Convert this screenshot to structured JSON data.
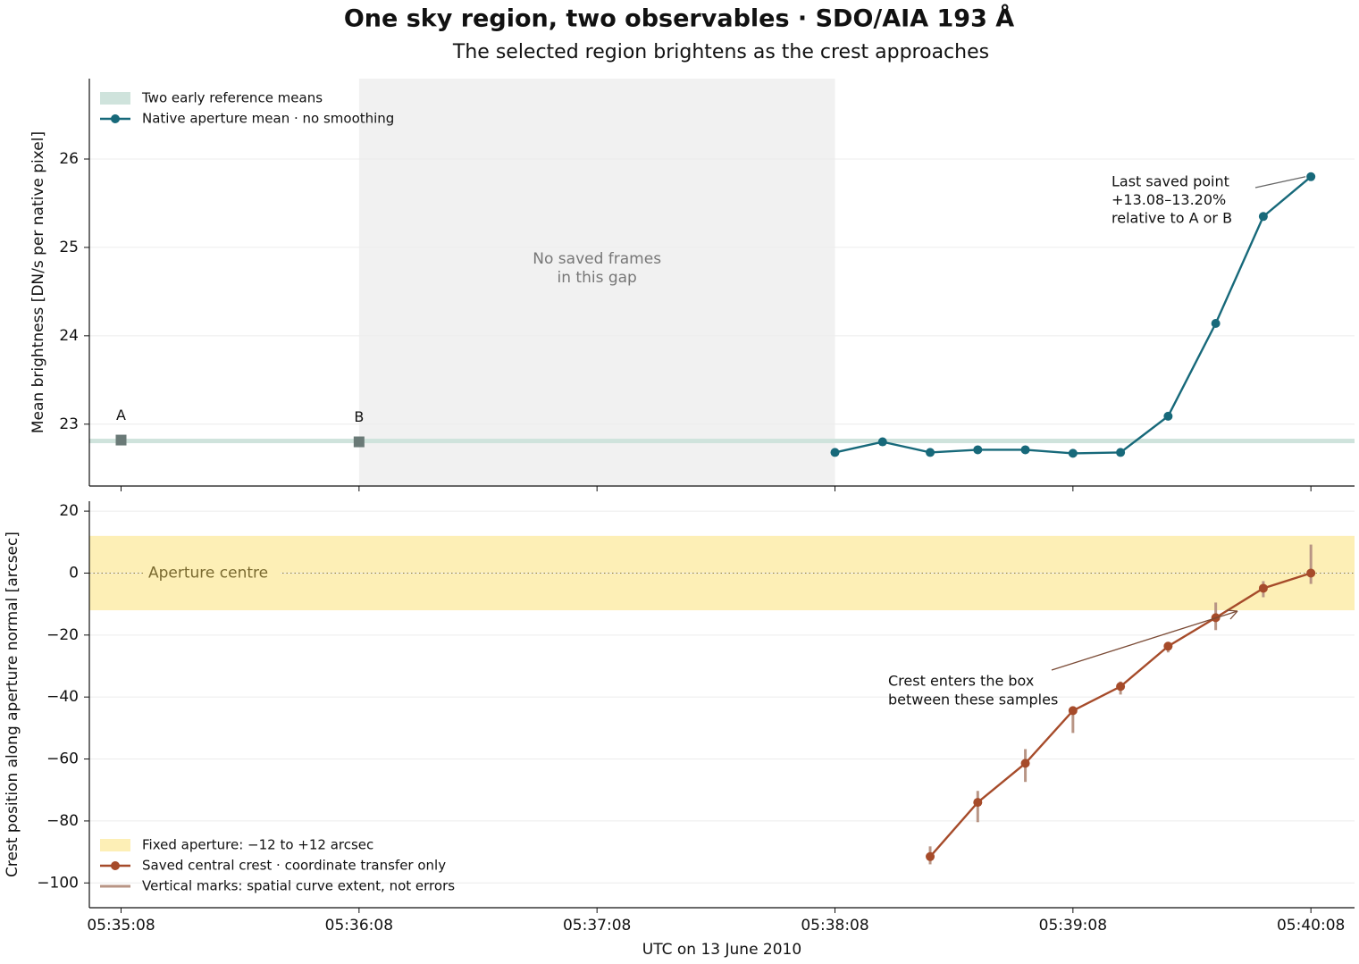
{
  "chart_data": [
    {
      "type": "line",
      "title": "One sky region, two observables · SDO/AIA 193 Å",
      "subtitle": "The selected region brightens as the crest approaches",
      "ylabel": "Mean brightness [DN/s per native pixel]",
      "xlim": [
        "05:35:00",
        "05:40:19"
      ],
      "xticks": [
        "05:35:08",
        "05:36:08",
        "05:37:08",
        "05:38:08",
        "05:39:08",
        "05:40:08"
      ],
      "ylim": [
        22.3,
        26.91
      ],
      "yticks": [
        23,
        24,
        25,
        26
      ],
      "grid": true,
      "legend": "upper left",
      "x": [
        "05:38:08",
        "05:38:20",
        "05:38:32",
        "05:38:44",
        "05:38:56",
        "05:39:08",
        "05:39:20",
        "05:39:32",
        "05:39:44",
        "05:39:56",
        "05:40:08"
      ],
      "series": [
        {
          "name": "Native aperture mean · no smoothing",
          "color": "#17697a",
          "values": [
            22.68,
            22.8,
            22.68,
            22.71,
            22.71,
            22.67,
            22.68,
            23.09,
            24.14,
            25.35,
            25.8
          ]
        }
      ],
      "references": {
        "name": "Two early reference means",
        "color": "#cfe3dc",
        "marker_color": "#6a7a77",
        "labels": [
          "A",
          "B"
        ],
        "x": [
          "05:35:08",
          "05:36:08"
        ],
        "values": [
          22.82,
          22.8
        ]
      },
      "gap": {
        "x": [
          "05:36:08",
          "05:38:08"
        ],
        "label": [
          "No saved frames",
          "in this gap"
        ]
      },
      "annotation": {
        "text": [
          "Last saved point",
          "+13.08–13.20%",
          "relative to A or B"
        ]
      }
    },
    {
      "type": "line",
      "ylabel": "Crest position along aperture normal [arcsec]",
      "xlabel": "UTC on 13 June 2010",
      "xlim": [
        "05:35:00",
        "05:40:19"
      ],
      "xticks": [
        "05:35:08",
        "05:36:08",
        "05:37:08",
        "05:38:08",
        "05:39:08",
        "05:40:08"
      ],
      "ylim": [
        -108,
        23.2
      ],
      "yticks": [
        {
          "value": -100,
          "label": "−100"
        },
        {
          "value": -80,
          "label": "−80"
        },
        {
          "value": -60,
          "label": "−60"
        },
        {
          "value": -40,
          "label": "−40"
        },
        {
          "value": -20,
          "label": "−20"
        },
        0,
        20
      ],
      "grid": true,
      "legend": "lower left",
      "x": [
        "05:38:32",
        "05:38:44",
        "05:38:56",
        "05:39:08",
        "05:39:20",
        "05:39:32",
        "05:39:44",
        "05:39:56",
        "05:40:08"
      ],
      "series": [
        {
          "name": "Saved central crest · coordinate transfer only",
          "color": "#a64b2a",
          "values": [
            -91.5,
            -74,
            -61.4,
            -44.4,
            -36.6,
            -23.6,
            -14.4,
            -4.9,
            0
          ],
          "extent_name": "Vertical marks: spatial curve extent, not errors",
          "extent_color": "#b89585",
          "extent_low": [
            -94,
            -80.4,
            -67.4,
            -51.6,
            -39.2,
            -25.6,
            -18.4,
            -7.8,
            -3.5
          ],
          "extent_high": [
            -88.2,
            -70.3,
            -56.8,
            -43,
            -35,
            -22.2,
            -9.5,
            -2.6,
            9.2
          ]
        }
      ],
      "band": {
        "name": "Fixed aperture: −12 to +12 arcsec",
        "range": [
          -12,
          12
        ],
        "color": "#fdefb6"
      },
      "center": {
        "label": "Aperture centre",
        "value": 0
      },
      "annotation": {
        "text": [
          "Crest enters the box",
          "between these samples"
        ]
      }
    }
  ]
}
